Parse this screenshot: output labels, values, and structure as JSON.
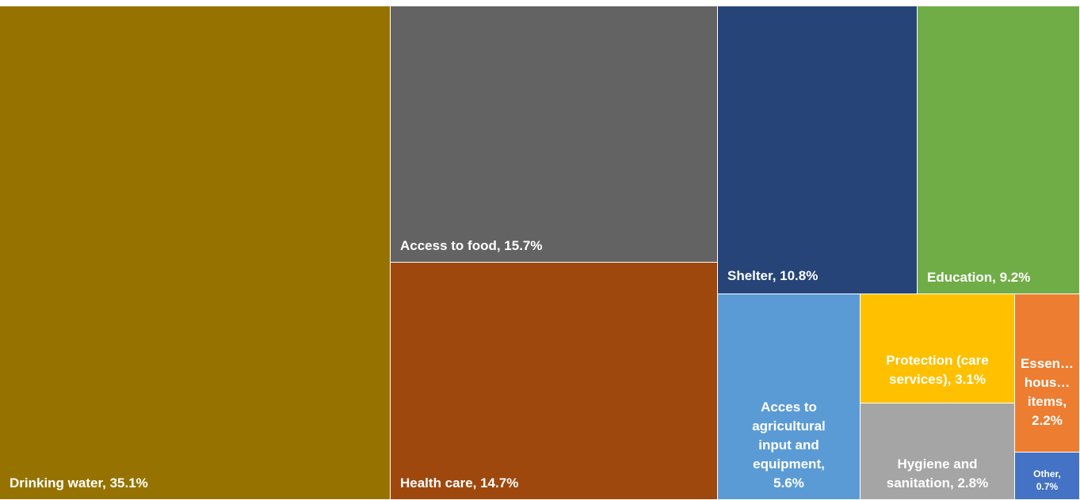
{
  "chart_data": {
    "type": "treemap",
    "title": "",
    "categories": [
      "Drinking water",
      "Access to food",
      "Health care",
      "Shelter",
      "Education",
      "Acces to agricultural input and equipment",
      "Protection (care services)",
      "Hygiene and sanitation",
      "Essential household items",
      "Other"
    ],
    "values": [
      35.1,
      15.7,
      14.7,
      10.8,
      9.2,
      5.6,
      3.1,
      2.8,
      2.2,
      0.7
    ],
    "unit": "%",
    "labels": [
      "Drinking water, 35.1%",
      "Access to food, 15.7%",
      "Health care, 14.7%",
      "Shelter, 10.8%",
      "Education, 9.2%",
      "Acces to\nagricultural\ninput and\nequipment,\n5.6%",
      "Protection (care\nservices), 3.1%",
      "Hygiene and\nsanitation, 2.8%",
      "Essen…\nhous…\nitems,\n2.2%",
      "Other,\n0.7%"
    ],
    "colors": [
      "#967300",
      "#636363",
      "#9e480e",
      "#264478",
      "#70ad47",
      "#5b9bd5",
      "#ffc000",
      "#a5a5a5",
      "#ed7d31",
      "#4472c4"
    ]
  }
}
